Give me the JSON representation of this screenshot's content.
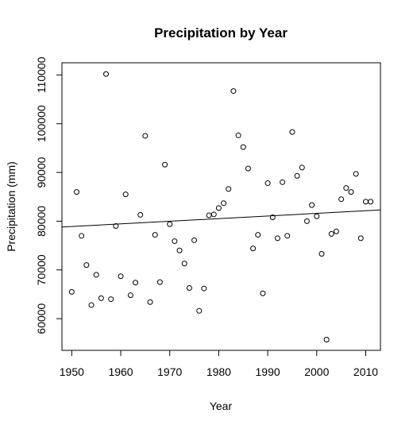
{
  "chart_data": {
    "type": "scatter",
    "title": "Precipitation by Year",
    "xlabel": "Year",
    "ylabel": "Precipitation (mm)",
    "xlim": [
      1948,
      2013
    ],
    "ylim": [
      53500,
      112500
    ],
    "x_ticks": [
      1950,
      1960,
      1970,
      1980,
      1990,
      2000,
      2010
    ],
    "y_ticks": [
      60000,
      70000,
      80000,
      90000,
      100000,
      110000
    ],
    "grid": false,
    "legend": "none",
    "points": [
      {
        "x": 1950,
        "y": 65500
      },
      {
        "x": 1951,
        "y": 86000
      },
      {
        "x": 1952,
        "y": 77000
      },
      {
        "x": 1953,
        "y": 71000
      },
      {
        "x": 1954,
        "y": 62800
      },
      {
        "x": 1955,
        "y": 69000
      },
      {
        "x": 1956,
        "y": 64200
      },
      {
        "x": 1957,
        "y": 110200
      },
      {
        "x": 1958,
        "y": 64000
      },
      {
        "x": 1959,
        "y": 79000
      },
      {
        "x": 1960,
        "y": 68700
      },
      {
        "x": 1961,
        "y": 85500
      },
      {
        "x": 1962,
        "y": 64800
      },
      {
        "x": 1963,
        "y": 67400
      },
      {
        "x": 1964,
        "y": 81300
      },
      {
        "x": 1965,
        "y": 97500
      },
      {
        "x": 1966,
        "y": 63400
      },
      {
        "x": 1967,
        "y": 77200
      },
      {
        "x": 1968,
        "y": 67500
      },
      {
        "x": 1969,
        "y": 91600
      },
      {
        "x": 1970,
        "y": 79400
      },
      {
        "x": 1971,
        "y": 75900
      },
      {
        "x": 1972,
        "y": 74000
      },
      {
        "x": 1973,
        "y": 71300
      },
      {
        "x": 1974,
        "y": 66300
      },
      {
        "x": 1975,
        "y": 76100
      },
      {
        "x": 1976,
        "y": 61600
      },
      {
        "x": 1977,
        "y": 66200
      },
      {
        "x": 1978,
        "y": 81200
      },
      {
        "x": 1979,
        "y": 81400
      },
      {
        "x": 1980,
        "y": 82700
      },
      {
        "x": 1981,
        "y": 83700
      },
      {
        "x": 1982,
        "y": 86600
      },
      {
        "x": 1983,
        "y": 106700
      },
      {
        "x": 1984,
        "y": 97600
      },
      {
        "x": 1985,
        "y": 95200
      },
      {
        "x": 1986,
        "y": 90800
      },
      {
        "x": 1987,
        "y": 74400
      },
      {
        "x": 1988,
        "y": 77200
      },
      {
        "x": 1989,
        "y": 65200
      },
      {
        "x": 1990,
        "y": 87800
      },
      {
        "x": 1991,
        "y": 80800
      },
      {
        "x": 1992,
        "y": 76500
      },
      {
        "x": 1993,
        "y": 88000
      },
      {
        "x": 1994,
        "y": 77000
      },
      {
        "x": 1995,
        "y": 98300
      },
      {
        "x": 1996,
        "y": 89300
      },
      {
        "x": 1997,
        "y": 91000
      },
      {
        "x": 1998,
        "y": 80000
      },
      {
        "x": 1999,
        "y": 83300
      },
      {
        "x": 2000,
        "y": 81000
      },
      {
        "x": 2001,
        "y": 73300
      },
      {
        "x": 2002,
        "y": 55700
      },
      {
        "x": 2003,
        "y": 77400
      },
      {
        "x": 2004,
        "y": 77900
      },
      {
        "x": 2005,
        "y": 84500
      },
      {
        "x": 2006,
        "y": 86800
      },
      {
        "x": 2007,
        "y": 86000
      },
      {
        "x": 2008,
        "y": 89700
      },
      {
        "x": 2009,
        "y": 76500
      },
      {
        "x": 2010,
        "y": 84000
      },
      {
        "x": 2011,
        "y": 84000
      }
    ],
    "trend_line": {
      "x": [
        1948,
        2013
      ],
      "y": [
        78800,
        82300
      ]
    }
  }
}
